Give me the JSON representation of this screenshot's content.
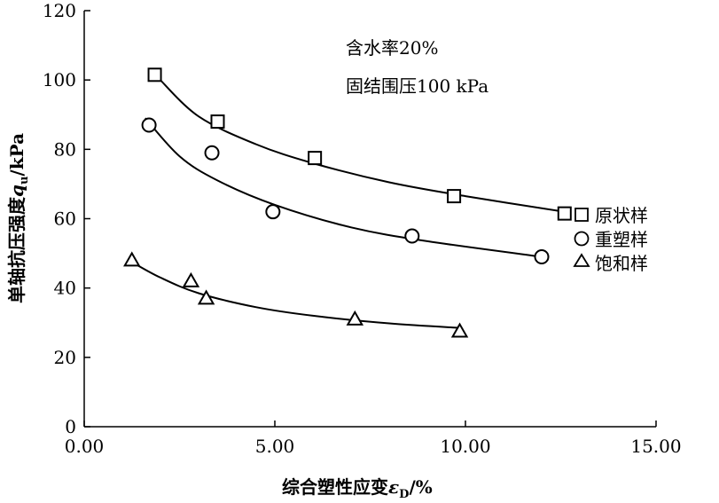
{
  "chart_data": {
    "type": "scatter",
    "annotations": [
      "含水率20%",
      "固结围压100 kPa"
    ],
    "xlabel": {
      "main": "综合塑性应变",
      "symbol": "ε",
      "sub": "D",
      "unit": "/%"
    },
    "ylabel": {
      "main": "单轴抗压强度",
      "symbol": "q",
      "sub": "u",
      "unit": "/kPa"
    },
    "xlim": [
      0,
      15
    ],
    "ylim": [
      0,
      120
    ],
    "x_ticks": [
      0,
      5,
      10,
      15
    ],
    "x_tick_labels": [
      "0.00",
      "5.00",
      "10.00",
      "15.00"
    ],
    "y_ticks": [
      0,
      20,
      40,
      60,
      80,
      100,
      120
    ],
    "y_tick_labels": [
      "0",
      "20",
      "40",
      "60",
      "80",
      "100",
      "120"
    ],
    "grid": false,
    "legend_position": "right",
    "series": [
      {
        "name": "原状样",
        "marker": "square",
        "points": [
          [
            1.85,
            101.5
          ],
          [
            3.5,
            88
          ],
          [
            6.05,
            77.5
          ],
          [
            9.7,
            66.5
          ],
          [
            12.6,
            61.5
          ]
        ],
        "fit": [
          [
            1.95,
            100.5
          ],
          [
            3.0,
            89.5
          ],
          [
            4.5,
            81.5
          ],
          [
            6.0,
            76
          ],
          [
            8.0,
            70.5
          ],
          [
            10.0,
            66.5
          ],
          [
            12.6,
            62
          ]
        ]
      },
      {
        "name": "重塑样",
        "marker": "circle",
        "points": [
          [
            1.7,
            87
          ],
          [
            3.35,
            79
          ],
          [
            4.95,
            62
          ],
          [
            8.6,
            55
          ],
          [
            12.0,
            49
          ]
        ],
        "fit": [
          [
            1.6,
            89
          ],
          [
            2.5,
            78
          ],
          [
            3.5,
            71
          ],
          [
            5.0,
            64
          ],
          [
            7.0,
            57.5
          ],
          [
            9.0,
            53.5
          ],
          [
            12.0,
            49
          ]
        ]
      },
      {
        "name": "饱和样",
        "marker": "triangle",
        "points": [
          [
            1.25,
            48
          ],
          [
            2.8,
            42
          ],
          [
            3.2,
            37
          ],
          [
            7.1,
            31
          ],
          [
            9.85,
            27.5
          ]
        ],
        "fit": [
          [
            1.25,
            47.5
          ],
          [
            2.0,
            43
          ],
          [
            3.0,
            38.5
          ],
          [
            4.5,
            34.5
          ],
          [
            6.0,
            32
          ],
          [
            8.0,
            29.8
          ],
          [
            9.85,
            28.5
          ]
        ]
      }
    ]
  }
}
